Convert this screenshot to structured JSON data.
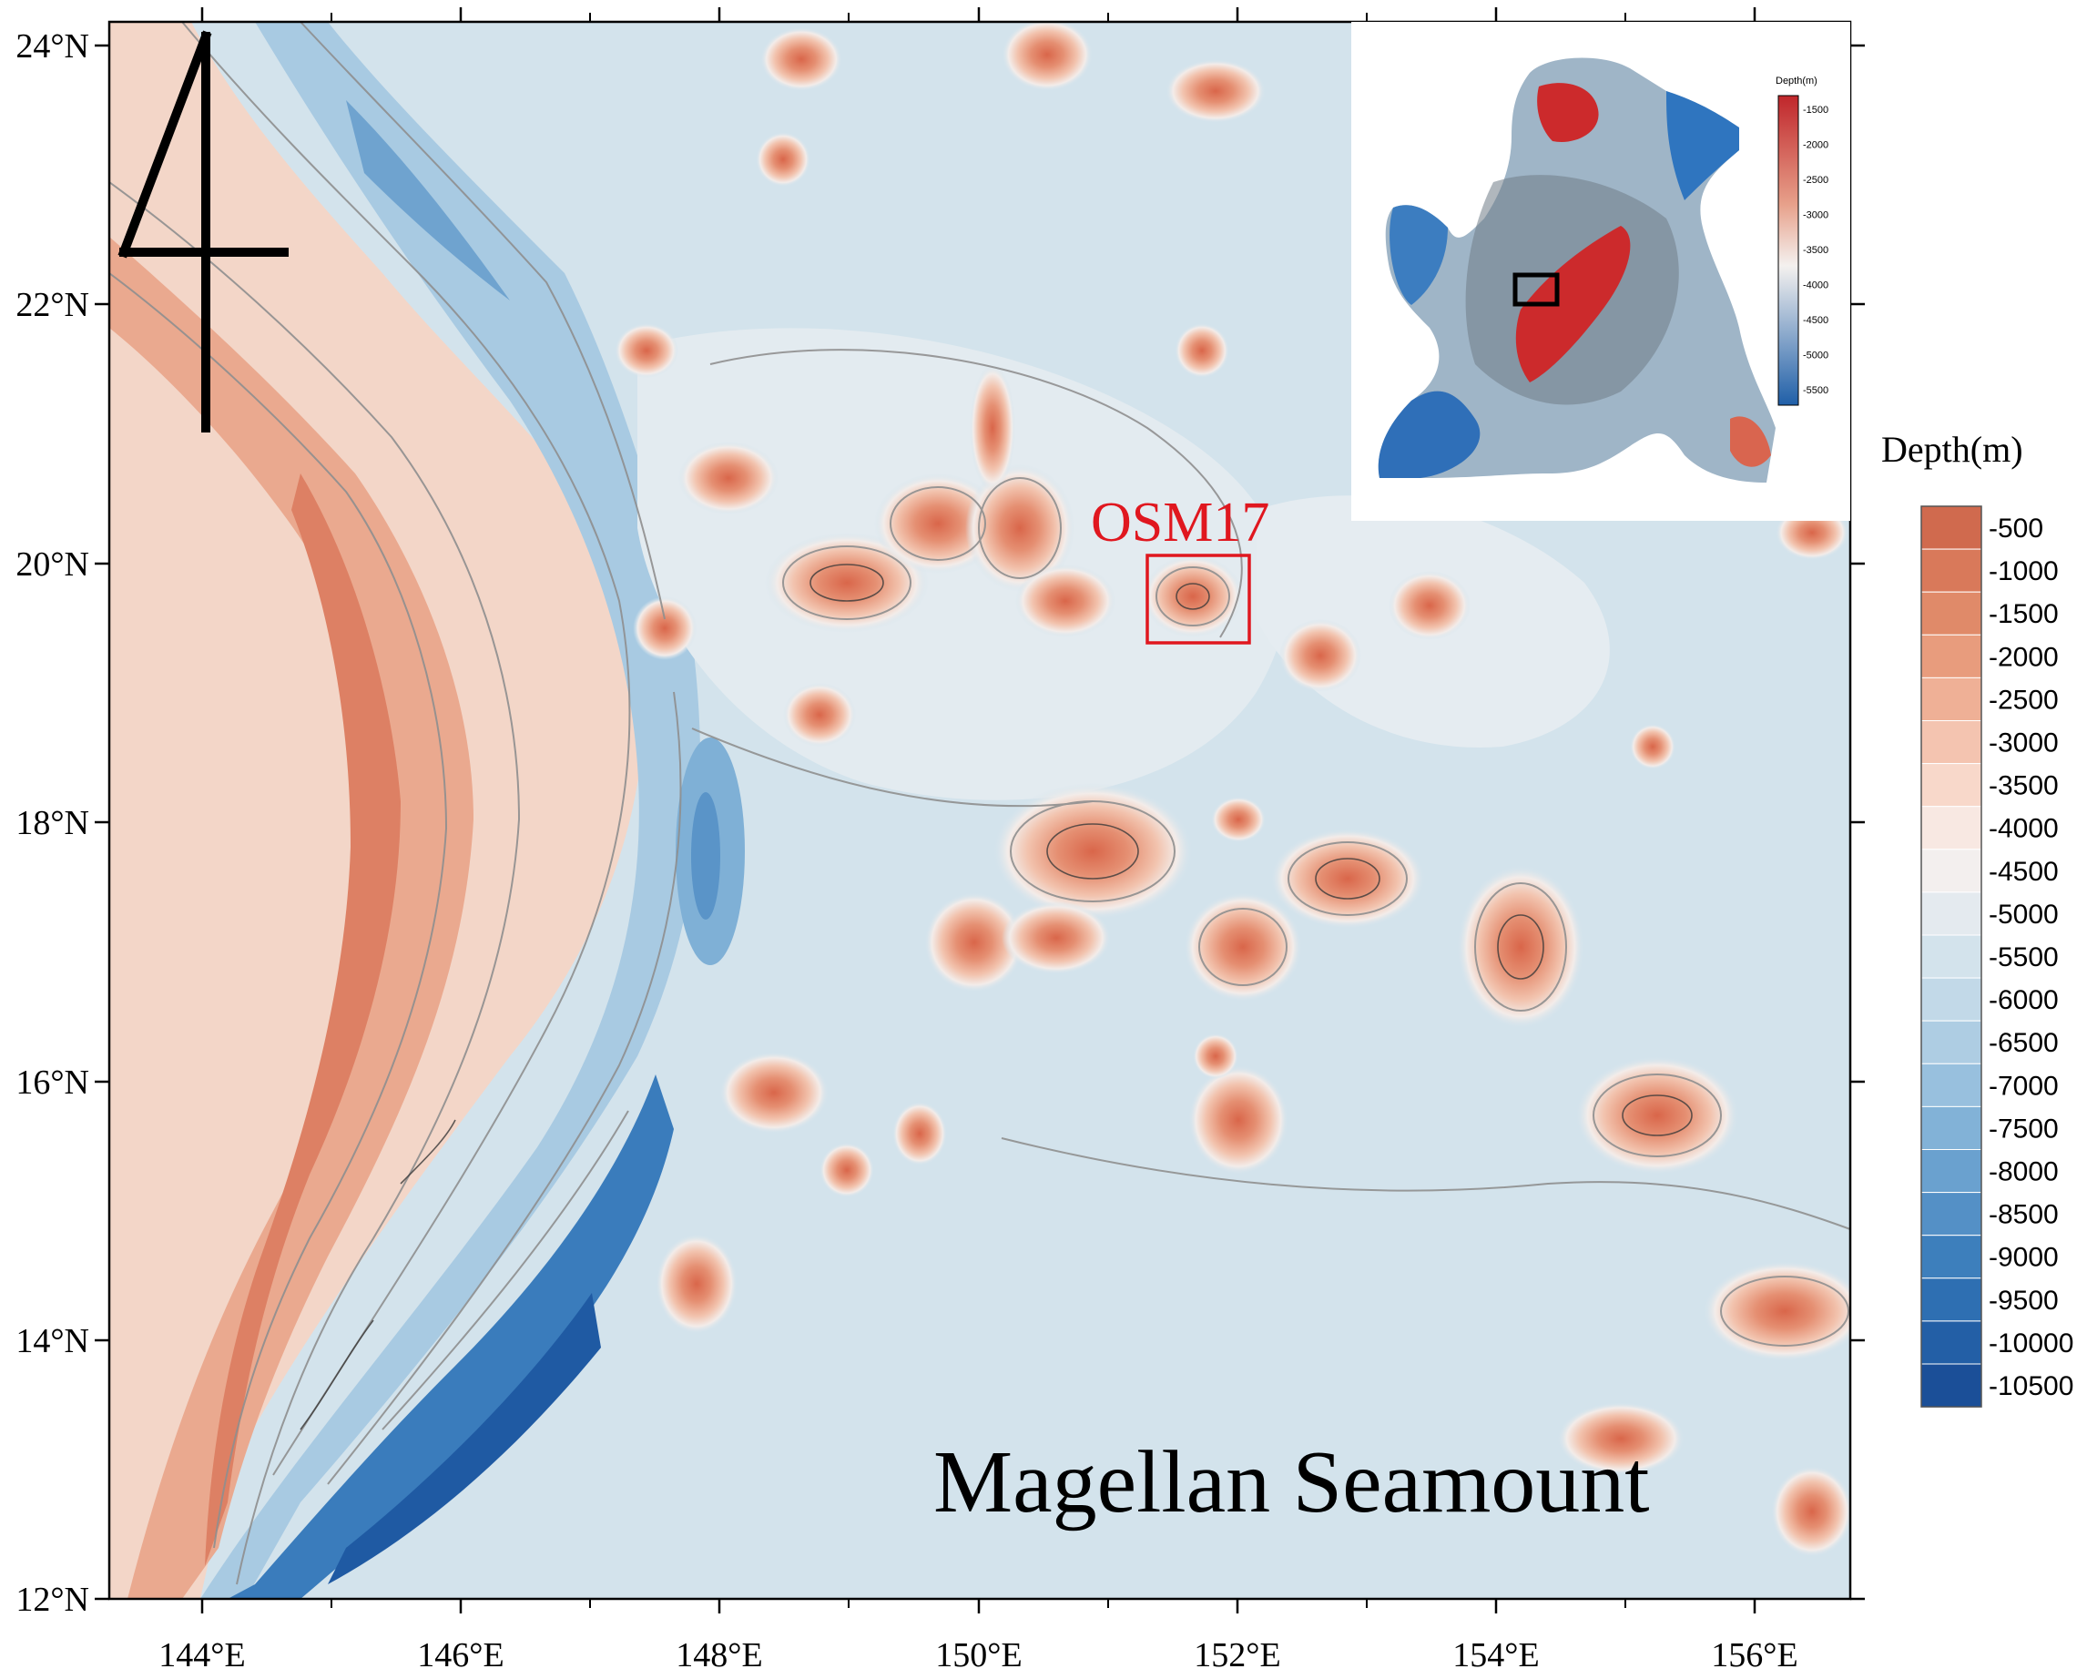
{
  "map": {
    "title": "Magellan Seamount",
    "north_symbol": "4",
    "site_label": "OSM17",
    "site_color": "#e0171f",
    "lon_labels": [
      "144°E",
      "146°E",
      "148°E",
      "150°E",
      "152°E",
      "154°E",
      "156°E"
    ],
    "lat_labels": [
      "24°N",
      "22°N",
      "20°N",
      "18°N",
      "16°N",
      "14°N",
      "12°N"
    ]
  },
  "legend": {
    "title": "Depth(m)",
    "entries": [
      {
        "label": "-500",
        "color": "#d06a4e"
      },
      {
        "label": "-1000",
        "color": "#d9795a"
      },
      {
        "label": "-1500",
        "color": "#e08a69"
      },
      {
        "label": "-2000",
        "color": "#e89c7d"
      },
      {
        "label": "-2500",
        "color": "#efb096"
      },
      {
        "label": "-3000",
        "color": "#f4c4b0"
      },
      {
        "label": "-3500",
        "color": "#f8d8ca"
      },
      {
        "label": "-4000",
        "color": "#f8e8e2"
      },
      {
        "label": "-4500",
        "color": "#f3efee"
      },
      {
        "label": "-5000",
        "color": "#e4eaef"
      },
      {
        "label": "-5500",
        "color": "#d3e3ec"
      },
      {
        "label": "-6000",
        "color": "#c2d9e8"
      },
      {
        "label": "-6500",
        "color": "#aecde3"
      },
      {
        "label": "-7000",
        "color": "#98c0de"
      },
      {
        "label": "-7500",
        "color": "#82b2d7"
      },
      {
        "label": "-8000",
        "color": "#6aa1cf"
      },
      {
        "label": "-8500",
        "color": "#5490c6"
      },
      {
        "label": "-9000",
        "color": "#3d7fbc"
      },
      {
        "label": "-9500",
        "color": "#2e6fb2"
      },
      {
        "label": "-10000",
        "color": "#235fa6"
      },
      {
        "label": "-10500",
        "color": "#1b4f98"
      }
    ]
  },
  "inset": {
    "legend_title": "Depth(m)",
    "labels": [
      "-1500",
      "-2000",
      "-2500",
      "-3000",
      "-3500",
      "-4000",
      "-4500",
      "-5000",
      "-5500"
    ]
  }
}
